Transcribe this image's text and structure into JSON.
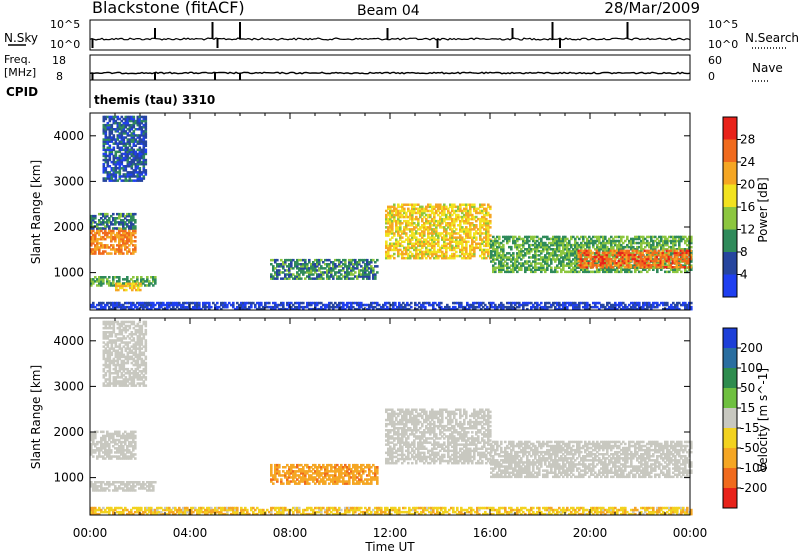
{
  "header": {
    "radar": "Blackstone (fitACF)",
    "beam": "Beam 04",
    "date": "28/Mar/2009"
  },
  "top_panel": {
    "left_label": "N.Sky",
    "right_label": "N.Search",
    "left_ticks": [
      "10^5",
      "10^0"
    ],
    "right_ticks": [
      "10^5",
      "10^0"
    ]
  },
  "freq_panel": {
    "left_label_1": "Freq.",
    "left_label_2": "[MHz]",
    "right_label": "Nave",
    "left_ticks": [
      "18",
      "8"
    ],
    "right_ticks": [
      "60",
      "0"
    ]
  },
  "cpid": {
    "label": "CPID",
    "text": "themis (tau) 3310"
  },
  "time_axis": {
    "label": "Time UT",
    "ticks": [
      "00:00",
      "04:00",
      "08:00",
      "12:00",
      "16:00",
      "20:00",
      "00:00"
    ]
  },
  "power_panel": {
    "ylabel": "Slant Range [km]",
    "yticks": [
      "1000",
      "2000",
      "3000",
      "4000"
    ],
    "colorbar_label": "Power [dB]",
    "colorbar_ticks": [
      "4",
      "8",
      "12",
      "16",
      "20",
      "24",
      "28"
    ],
    "colors": [
      "#1f3ff0",
      "#26459e",
      "#2f8a5a",
      "#8cc63f",
      "#f2e21f",
      "#f5a623",
      "#f06a1d",
      "#e8221a"
    ]
  },
  "velocity_panel": {
    "ylabel": "Slant Range [km]",
    "yticks": [
      "1000",
      "2000",
      "3000",
      "4000"
    ],
    "colorbar_label": "Velocity [m s^-1]",
    "colorbar_ticks": [
      "200",
      "100",
      "50",
      "15",
      "-15",
      "-50",
      "-100",
      "-200"
    ],
    "colors": [
      "#1d3fd8",
      "#2a6ea0",
      "#2e8c4e",
      "#6fc040",
      "#c8c8c0",
      "#f2d21f",
      "#f5a623",
      "#f06a1d",
      "#e8221a"
    ]
  },
  "chart_data": [
    {
      "type": "line",
      "title": "N.Sky / N.Search",
      "xlim": [
        0,
        24
      ],
      "scale": "log",
      "ylim": [
        1,
        100000
      ],
      "grid": false,
      "spikes_hours": [
        0.1,
        2.6,
        4.9,
        5.1,
        6.0,
        11.9,
        13.9,
        16.9,
        18.5,
        18.8,
        21.5
      ]
    },
    {
      "type": "line",
      "title": "Freq. / Nave",
      "xlim": [
        0,
        24
      ],
      "series": [
        {
          "name": "Freq.",
          "ylim": [
            8,
            18
          ],
          "value": 10.5
        },
        {
          "name": "Nave",
          "ylim": [
            0,
            60
          ],
          "value": 30
        }
      ],
      "dips_hours": [
        0.1,
        2.6,
        5.0,
        6.0
      ]
    },
    {
      "type": "heatmap",
      "title": "Power [dB]",
      "xlabel": "Time UT",
      "ylabel": "Slant Range [km]",
      "xlim": [
        0,
        24
      ],
      "ylim": [
        180,
        4500
      ],
      "zlim": [
        0,
        30
      ],
      "regions": [
        {
          "t": [
            0.0,
            1.8
          ],
          "r": [
            1400,
            1950
          ],
          "level": 24
        },
        {
          "t": [
            0.0,
            1.8
          ],
          "r": [
            1950,
            2300
          ],
          "level": 9
        },
        {
          "t": [
            0.0,
            2.6
          ],
          "r": [
            700,
            900
          ],
          "level": 12
        },
        {
          "t": [
            1.0,
            2.0
          ],
          "r": [
            600,
            760
          ],
          "level": 20
        },
        {
          "t": [
            0.5,
            2.2
          ],
          "r": [
            3000,
            4400
          ],
          "level": 6
        },
        {
          "t": [
            7.2,
            11.5
          ],
          "r": [
            850,
            1300
          ],
          "level": 10
        },
        {
          "t": [
            11.8,
            16.0
          ],
          "r": [
            1300,
            2500
          ],
          "level": 19
        },
        {
          "t": [
            16.0,
            24.0
          ],
          "r": [
            1000,
            1800
          ],
          "level": 12
        },
        {
          "t": [
            19.5,
            24.0
          ],
          "r": [
            1100,
            1500
          ],
          "level": 26
        },
        {
          "t": [
            0.0,
            24.0
          ],
          "r": [
            180,
            320
          ],
          "level": 4
        }
      ]
    },
    {
      "type": "heatmap",
      "title": "Velocity [m s^-1]",
      "xlabel": "Time UT",
      "ylabel": "Slant Range [km]",
      "xlim": [
        0,
        24
      ],
      "ylim": [
        180,
        4500
      ],
      "zlim": [
        -250,
        250
      ],
      "regions": [
        {
          "t": [
            0.0,
            1.8
          ],
          "r": [
            1400,
            2000
          ],
          "level": 0
        },
        {
          "t": [
            0.0,
            2.6
          ],
          "r": [
            700,
            900
          ],
          "level": 0
        },
        {
          "t": [
            0.5,
            2.2
          ],
          "r": [
            3000,
            4400
          ],
          "level": 0
        },
        {
          "t": [
            7.2,
            11.5
          ],
          "r": [
            850,
            1300
          ],
          "level": -80
        },
        {
          "t": [
            11.8,
            16.0
          ],
          "r": [
            1300,
            2500
          ],
          "level": 0
        },
        {
          "t": [
            16.0,
            24.0
          ],
          "r": [
            1000,
            1800
          ],
          "level": 0
        },
        {
          "t": [
            0.0,
            24.0
          ],
          "r": [
            180,
            320
          ],
          "level": -40
        }
      ]
    }
  ]
}
